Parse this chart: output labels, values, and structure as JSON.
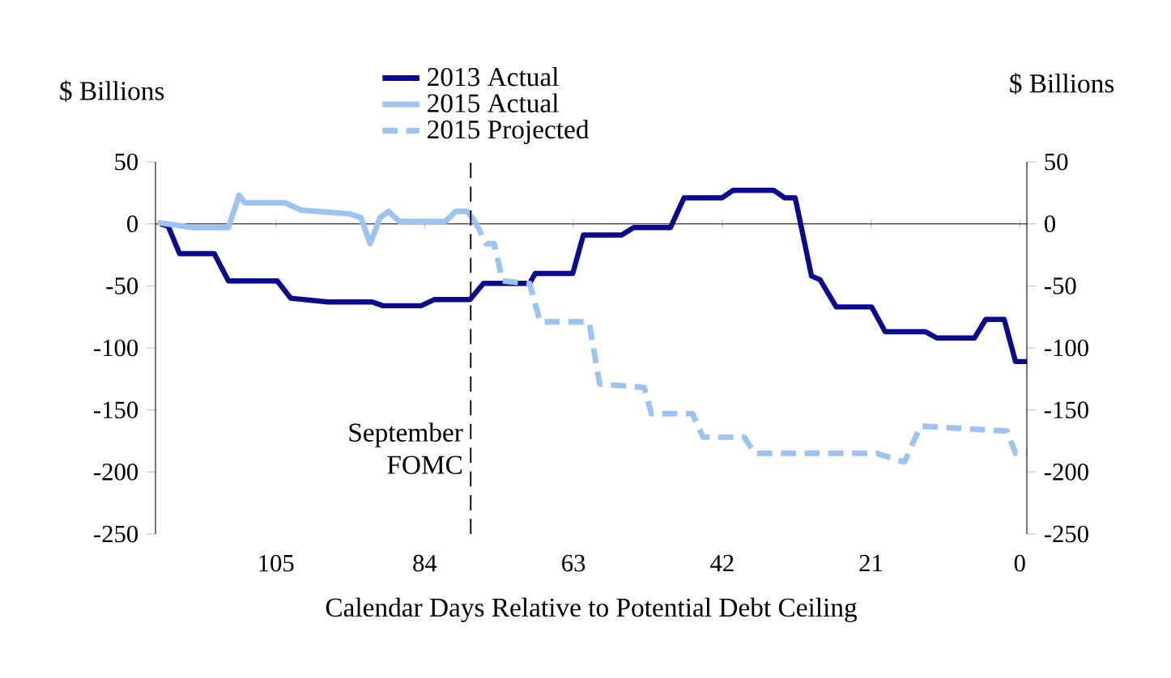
{
  "chart_data": {
    "type": "line",
    "xlabel": "Calendar Days Relative to Potential Debt Ceiling",
    "ylabel": "$ Billions",
    "y2label": "$ Billions",
    "xlim": [
      122,
      -1
    ],
    "xticks": [
      105,
      84,
      63,
      42,
      21,
      0
    ],
    "ylim": [
      -250,
      50
    ],
    "yticks": [
      50,
      0,
      -50,
      -100,
      -150,
      -200,
      -250
    ],
    "y2lim": [
      -250,
      50
    ],
    "y2ticks": [
      50,
      0,
      -50,
      -100,
      -150,
      -200,
      -250
    ],
    "legend": "top",
    "series": [
      {
        "name": "2013 Actual",
        "color": "#0a0a8c",
        "line_style": "solid",
        "x": [
          121.3,
          120.2,
          118.6,
          113.7,
          111.7,
          104.8,
          102.9,
          97.6,
          91.4,
          89.9,
          84.5,
          82.6,
          77.6,
          75.7,
          69.2,
          68.4,
          63.1,
          61.6,
          56.2,
          54.5,
          49.3,
          47.4,
          42.0,
          40.5,
          34.7,
          33.2,
          31.7,
          29.4,
          28.2,
          25.9,
          20.9,
          19.0,
          13.3,
          11.7,
          6.4,
          4.8,
          2.2,
          0.6,
          -1
        ],
        "values": [
          0,
          -2,
          -24,
          -24,
          -46,
          -46,
          -60,
          -63,
          -63,
          -66,
          -66,
          -61,
          -61,
          -48,
          -48,
          -40,
          -40,
          -9,
          -9,
          -3,
          -3,
          21,
          21,
          27,
          27,
          21,
          21,
          -42,
          -45,
          -67,
          -67,
          -87,
          -87,
          -92,
          -92,
          -77,
          -77,
          -111,
          -111
        ]
      },
      {
        "name": "2015 Actual",
        "color": "#9dc3f0",
        "line_style": "solid",
        "x": [
          121.7,
          116.7,
          111.7,
          110.2,
          109.4,
          103.7,
          101.4,
          94.5,
          93.0,
          91.7,
          90.3,
          89.1,
          87.6,
          81.1,
          79.6,
          78.0,
          76.9
        ],
        "values": [
          1,
          -3,
          -3,
          23,
          17,
          17,
          11,
          8,
          5,
          -16,
          5,
          10,
          2,
          2,
          10,
          10,
          2
        ]
      },
      {
        "name": "2015 Projected",
        "color": "#9dc3f0",
        "line_style": "dashed",
        "x": [
          76.9,
          75.3,
          74.2,
          73.0,
          69.2,
          67.7,
          60.8,
          59.3,
          53.0,
          52.0,
          46.2,
          44.7,
          38.9,
          37.4,
          20.2,
          16.3,
          14.0,
          1.8,
          0.6,
          -1
        ],
        "values": [
          2,
          -16,
          -16,
          -46,
          -48,
          -79,
          -79,
          -129,
          -132,
          -153,
          -153,
          -172,
          -172,
          -185,
          -185,
          -192,
          -163,
          -167,
          -185,
          -185
        ]
      }
    ],
    "ref_lines": [
      {
        "axis": "x",
        "value": 77.5,
        "label": "September FOMC",
        "color": "#000000",
        "line_style": "dashed"
      }
    ]
  }
}
